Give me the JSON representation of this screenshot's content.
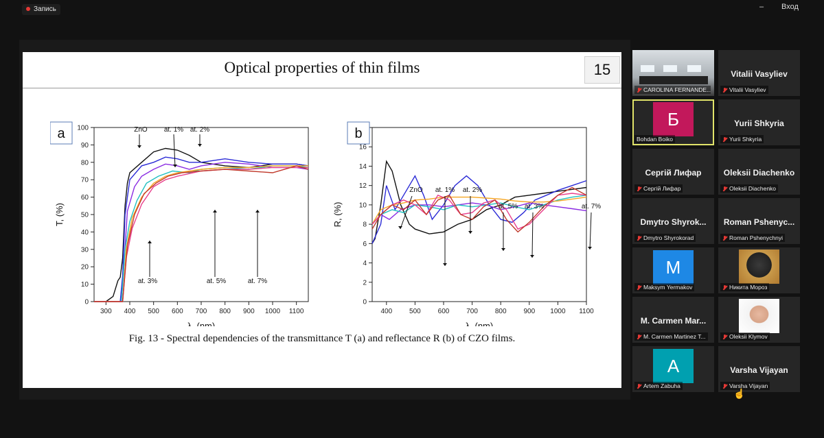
{
  "recording": {
    "label": "Запись"
  },
  "window": {
    "minimize": "–",
    "exit_label": "Вход"
  },
  "slide": {
    "title": "Optical properties of thin films",
    "number": "15",
    "caption": "Fig. 13 - Spectral dependencies of the transmittance  T (a) and reflectance R (b) of CZO films."
  },
  "chart_data": [
    {
      "type": "line",
      "panel": "a",
      "xlabel": "λ, (nm)",
      "ylabel": "T, (%)",
      "xlim": [
        250,
        1150
      ],
      "ylim": [
        0,
        100
      ],
      "x_ticks": [
        300,
        400,
        500,
        600,
        700,
        800,
        900,
        1000,
        1100
      ],
      "y_ticks": [
        0,
        10,
        20,
        30,
        40,
        50,
        60,
        70,
        80,
        90,
        100
      ],
      "annotations": [
        "ZnO",
        "at. 1%",
        "at. 2%",
        "at. 3%",
        "at. 5%",
        "at. 7%"
      ],
      "series": [
        {
          "color": "#111111",
          "x": [
            250,
            300,
            330,
            350,
            360,
            370,
            380,
            390,
            400,
            450,
            500,
            550,
            600,
            650,
            700,
            800,
            900,
            1000,
            1100,
            1150
          ],
          "y": [
            0,
            0,
            3,
            12,
            14,
            25,
            55,
            68,
            74,
            80,
            86,
            88,
            87,
            84,
            80,
            78,
            77,
            79,
            79,
            78
          ]
        },
        {
          "color": "#2b2bd6",
          "x": [
            250,
            360,
            370,
            380,
            400,
            450,
            500,
            550,
            600,
            650,
            700,
            800,
            900,
            1000,
            1100,
            1150
          ],
          "y": [
            0,
            0,
            15,
            50,
            70,
            78,
            80,
            83,
            82,
            80,
            80,
            82,
            80,
            79,
            79,
            78
          ]
        },
        {
          "color": "#8a2be2",
          "x": [
            250,
            365,
            375,
            390,
            420,
            450,
            500,
            550,
            600,
            650,
            700,
            800,
            900,
            1000,
            1100,
            1150
          ],
          "y": [
            0,
            0,
            20,
            52,
            66,
            72,
            76,
            79,
            78,
            76,
            78,
            80,
            79,
            77,
            77,
            76
          ]
        },
        {
          "color": "#20c0c0",
          "x": [
            250,
            365,
            380,
            400,
            430,
            470,
            520,
            580,
            650,
            700,
            800,
            900,
            1000,
            1100,
            1150
          ],
          "y": [
            0,
            0,
            30,
            46,
            58,
            68,
            72,
            75,
            74,
            76,
            77,
            76,
            78,
            78,
            77
          ]
        },
        {
          "color": "#f5a623",
          "x": [
            250,
            370,
            385,
            410,
            450,
            500,
            550,
            600,
            700,
            800,
            900,
            1000,
            1100,
            1150
          ],
          "y": [
            0,
            0,
            30,
            48,
            60,
            68,
            72,
            74,
            76,
            77,
            77,
            78,
            78,
            78
          ]
        },
        {
          "color": "#e83e8c",
          "x": [
            250,
            370,
            385,
            410,
            450,
            500,
            550,
            600,
            700,
            800,
            900,
            1000,
            1100,
            1150
          ],
          "y": [
            0,
            0,
            25,
            42,
            56,
            66,
            70,
            72,
            75,
            76,
            76,
            77,
            77,
            77
          ]
        },
        {
          "color": "#c0392b",
          "x": [
            250,
            370,
            390,
            420,
            460,
            510,
            560,
            620,
            700,
            800,
            900,
            1000,
            1100,
            1150
          ],
          "y": [
            0,
            0,
            32,
            50,
            62,
            68,
            72,
            74,
            75,
            76,
            75,
            74,
            78,
            76
          ]
        }
      ]
    },
    {
      "type": "line",
      "panel": "b",
      "xlabel": "λ, (nm)",
      "ylabel": "R, (%)",
      "xlim": [
        350,
        1100
      ],
      "ylim": [
        0,
        18
      ],
      "x_ticks": [
        400,
        500,
        600,
        700,
        800,
        900,
        1000,
        1100
      ],
      "y_ticks": [
        0,
        2,
        4,
        6,
        8,
        10,
        12,
        14,
        16,
        18
      ],
      "annotations": [
        "ZnO",
        "at. 1%",
        "at. 2%",
        "at. 5%",
        "at. 3%",
        "at. 7%"
      ],
      "series": [
        {
          "color": "#111111",
          "x": [
            350,
            360,
            380,
            400,
            420,
            450,
            480,
            500,
            550,
            600,
            650,
            700,
            750,
            800,
            850,
            900,
            950,
            1000,
            1050,
            1100
          ],
          "y": [
            6,
            6.5,
            10,
            14.5,
            13.5,
            10,
            8,
            7.5,
            7,
            7.2,
            8,
            8.5,
            9.5,
            10,
            10.8,
            11,
            11.2,
            11.4,
            11.6,
            11.8
          ]
        },
        {
          "color": "#2b2bd6",
          "x": [
            350,
            380,
            400,
            430,
            460,
            500,
            530,
            560,
            600,
            640,
            680,
            720,
            760,
            800,
            840,
            880,
            920,
            960,
            1000,
            1050,
            1100
          ],
          "y": [
            6,
            8,
            12,
            9.5,
            11,
            13,
            11,
            8.5,
            10,
            12,
            13,
            12,
            10,
            8.5,
            8.2,
            9.2,
            10.5,
            11,
            11.5,
            12,
            12.5
          ]
        },
        {
          "color": "#8a2be2",
          "x": [
            350,
            380,
            410,
            450,
            500,
            550,
            600,
            650,
            700,
            750,
            800,
            850,
            900,
            950,
            1000,
            1050,
            1100
          ],
          "y": [
            8,
            9,
            8.5,
            9.5,
            10,
            10,
            9.8,
            10,
            10.2,
            10,
            9.5,
            9.8,
            10.2,
            10,
            9.8,
            9.6,
            9.4
          ]
        },
        {
          "color": "#20c0c0",
          "x": [
            350,
            380,
            420,
            460,
            500,
            550,
            600,
            650,
            700,
            750,
            800,
            850,
            900,
            950,
            1000,
            1050,
            1100
          ],
          "y": [
            8,
            9,
            9.5,
            9.2,
            10,
            9.8,
            9.5,
            10,
            9.8,
            10,
            10.2,
            9.8,
            9.5,
            10,
            10.5,
            10.8,
            11
          ]
        },
        {
          "color": "#f5a623",
          "x": [
            350,
            380,
            420,
            460,
            500,
            550,
            600,
            650,
            700,
            750,
            800,
            850,
            900,
            950,
            1000,
            1050,
            1100
          ],
          "y": [
            8,
            9.5,
            10,
            10.2,
            10.5,
            10.6,
            10.8,
            10.8,
            10.8,
            10.7,
            10.6,
            10.4,
            10.3,
            10.3,
            10.4,
            10.6,
            10.8
          ]
        },
        {
          "color": "#e83e8c",
          "x": [
            350,
            380,
            420,
            460,
            500,
            540,
            580,
            620,
            660,
            700,
            740,
            780,
            820,
            860,
            900,
            950,
            1000,
            1050,
            1100
          ],
          "y": [
            8,
            9,
            10,
            10.5,
            10,
            9,
            11,
            10.5,
            9,
            9.2,
            10.2,
            10.5,
            9.5,
            7.5,
            8,
            9.5,
            11,
            11.2,
            11
          ]
        },
        {
          "color": "#c0392b",
          "x": [
            350,
            380,
            420,
            460,
            500,
            540,
            580,
            620,
            660,
            700,
            740,
            780,
            820,
            860,
            900,
            950,
            1000,
            1050,
            1100
          ],
          "y": [
            7.5,
            9,
            10,
            9.5,
            10.5,
            9,
            10.5,
            11,
            9,
            8.5,
            9.8,
            10.5,
            8.5,
            7.2,
            8.2,
            9.8,
            11,
            11.8,
            11
          ]
        }
      ]
    }
  ],
  "participants": [
    {
      "name": "CAROLINA FERNANDE...",
      "type": "video"
    },
    {
      "name": "Vitalii Vasyliev",
      "display": "Vitalii Vasyliev"
    },
    {
      "name": "Bohdan Boiko",
      "avatar_letter": "Б",
      "avatar_color": "#c2185b",
      "active": true
    },
    {
      "name": "Yurii Shkyria",
      "display": "Yurii Shkyria"
    },
    {
      "name": "Сергій Лифар",
      "display": "Сергій Лифар"
    },
    {
      "name": "Oleksii Diachenko",
      "display": "Oleksii Diachenko"
    },
    {
      "name": "Dmytro Shyrokorad",
      "display": "Dmytro Shyrok..."
    },
    {
      "name": "Roman Pshenychnyi",
      "display": "Roman  Pshenyc..."
    },
    {
      "name": "Maksym Yermakov",
      "avatar_letter": "M",
      "avatar_color": "#1e88e5"
    },
    {
      "name": "Никита Мороз",
      "type": "photo"
    },
    {
      "name": "M. Carmen Martinez T...",
      "display": "M. Carmen Mar..."
    },
    {
      "name": "Oleksii Klymov",
      "type": "photo"
    },
    {
      "name": "Artem Zabuha",
      "avatar_letter": "A",
      "avatar_color": "#00a0b0"
    },
    {
      "name": "Varsha Vijayan",
      "display": "Varsha Vijayan"
    }
  ]
}
